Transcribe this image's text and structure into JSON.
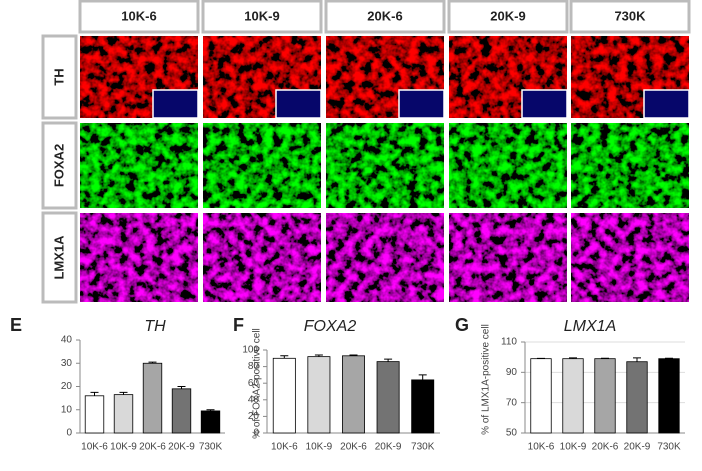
{
  "column_headers": [
    "10K-6",
    "10K-9",
    "20K-6",
    "20K-9",
    "730K"
  ],
  "row_labels": [
    "TH",
    "FOXA2",
    "LMX1A"
  ],
  "panel_labels": [
    "E",
    "F",
    "G"
  ],
  "chart_data": [
    {
      "type": "bar",
      "title": "TH",
      "categories": [
        "10K-6",
        "10K-9",
        "20K-6",
        "20K-9",
        "730K"
      ],
      "values": [
        16,
        16.5,
        30,
        19,
        9.5
      ],
      "errors": [
        1.5,
        1,
        0.5,
        1,
        0.5
      ],
      "colors": [
        "#ffffff",
        "#d9d9d9",
        "#a6a6a6",
        "#737373",
        "#000000"
      ],
      "ylim": [
        0,
        40
      ],
      "yticks": [
        0,
        10,
        20,
        30,
        40
      ],
      "grid": false
    },
    {
      "type": "bar",
      "title": "FOXA2",
      "y_label": "% of FOXA2-positive cell",
      "categories": [
        "10K-6",
        "10K-9",
        "20K-6",
        "20K-9",
        "730K"
      ],
      "values": [
        90,
        92,
        93,
        86,
        64
      ],
      "errors": [
        3,
        2,
        1,
        3,
        6
      ],
      "colors": [
        "#ffffff",
        "#d9d9d9",
        "#a6a6a6",
        "#737373",
        "#000000"
      ],
      "ylim": [
        0,
        100
      ],
      "yticks": [
        0,
        20,
        40,
        60,
        80,
        100
      ],
      "grid": false
    },
    {
      "type": "bar",
      "title": "LMX1A",
      "y_label": "% of LMX1A-positive cell",
      "categories": [
        "10K-6",
        "10K-9",
        "20K-6",
        "20K-9",
        "730K"
      ],
      "values": [
        99,
        99,
        99,
        97,
        99
      ],
      "errors": [
        0.2,
        0.5,
        0.3,
        2.5,
        0.3
      ],
      "colors": [
        "#ffffff",
        "#d9d9d9",
        "#a6a6a6",
        "#737373",
        "#000000"
      ],
      "ylim": [
        50,
        110
      ],
      "yticks": [
        50,
        70,
        90,
        110
      ],
      "grid": true
    }
  ]
}
